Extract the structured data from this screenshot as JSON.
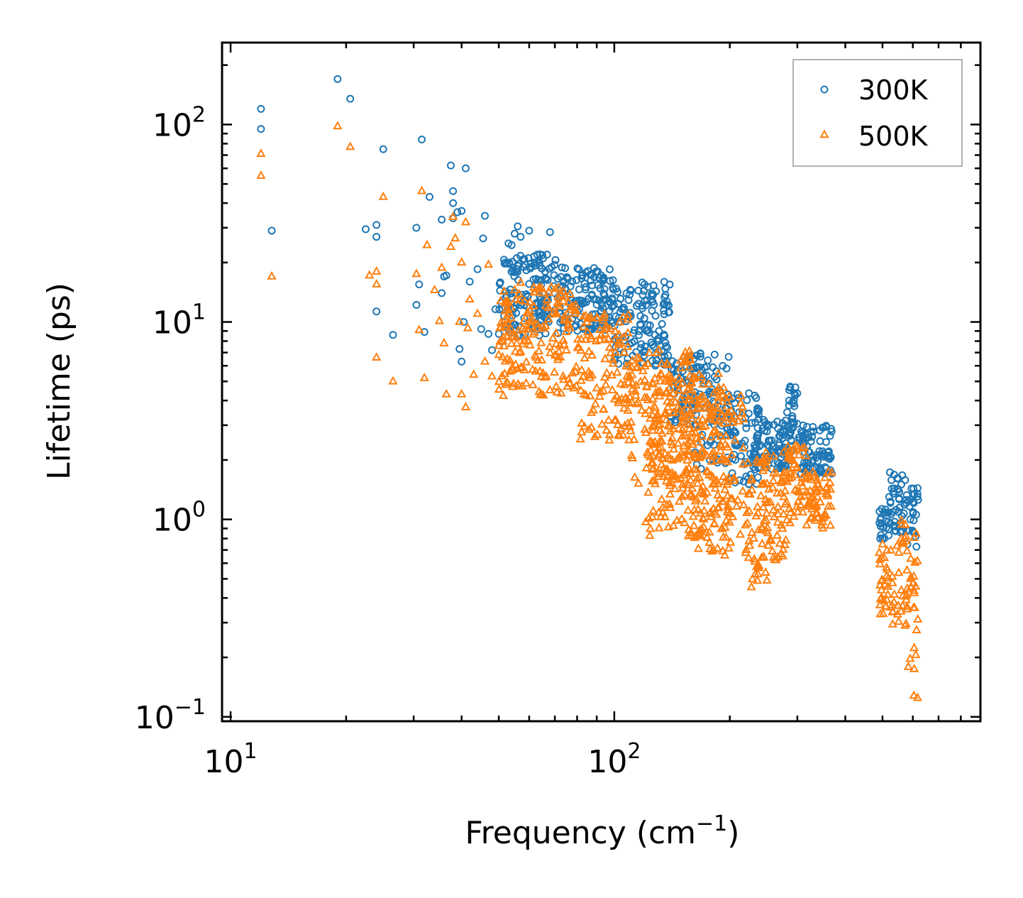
{
  "chart_data": {
    "type": "scatter",
    "title": "",
    "xlabel": "Frequency (cm",
    "xlabel_sup": "−1",
    "xlabel_end": ")",
    "ylabel": "Lifetime (ps)",
    "xscale": "log",
    "yscale": "log",
    "xlim": [
      9.5,
      900
    ],
    "ylim": [
      0.095,
      260
    ],
    "x_ticks": [
      {
        "value": 10,
        "base": "10",
        "exp": "1"
      },
      {
        "value": 100,
        "base": "10",
        "exp": "2"
      }
    ],
    "y_ticks": [
      {
        "value": 0.1,
        "base": "10",
        "exp": "−1"
      },
      {
        "value": 1,
        "base": "10",
        "exp": "0"
      },
      {
        "value": 10,
        "base": "10",
        "exp": "1"
      },
      {
        "value": 100,
        "base": "10",
        "exp": "2"
      }
    ],
    "legend_position": "top-right",
    "series": [
      {
        "name": "300K",
        "marker": "circle",
        "color": "#1f77b4",
        "points": [
          [
            12.0,
            120
          ],
          [
            12.0,
            95
          ],
          [
            12.8,
            29
          ],
          [
            19.0,
            170
          ],
          [
            20.5,
            135
          ],
          [
            24.0,
            31
          ],
          [
            24.0,
            27
          ],
          [
            24.0,
            11.3
          ],
          [
            25.0,
            75
          ],
          [
            26.5,
            8.6
          ],
          [
            22.5,
            29.5
          ],
          [
            30.5,
            12.2
          ],
          [
            30.5,
            30
          ],
          [
            31.0,
            15.5
          ],
          [
            31.5,
            84
          ],
          [
            32.0,
            8.9
          ],
          [
            33.0,
            43
          ],
          [
            35.5,
            14
          ],
          [
            35.5,
            33
          ],
          [
            36.0,
            17
          ],
          [
            36.5,
            17.2
          ],
          [
            37.5,
            62
          ],
          [
            38.0,
            46
          ],
          [
            38.0,
            40
          ],
          [
            38.0,
            33.5
          ],
          [
            39.0,
            36
          ],
          [
            39.5,
            7.3
          ],
          [
            40.0,
            36.5
          ],
          [
            40.0,
            6.3
          ],
          [
            40.5,
            10
          ],
          [
            41.0,
            60
          ],
          [
            42.0,
            16
          ],
          [
            44.0,
            18.5
          ],
          [
            45.0,
            9.2
          ],
          [
            45.5,
            26.5
          ],
          [
            46.0,
            34.5
          ],
          [
            47.0,
            8.7
          ],
          [
            48.0,
            7.2
          ],
          [
            49.0,
            11.6
          ],
          [
            50.0,
            8.7
          ],
          [
            51.0,
            8.0
          ],
          [
            52.0,
            20
          ],
          [
            53.0,
            25
          ],
          [
            54.0,
            24.5
          ],
          [
            55.0,
            28
          ],
          [
            56.0,
            30.5
          ],
          [
            57.0,
            27
          ],
          [
            58.0,
            19
          ],
          [
            60.0,
            29
          ],
          [
            62.0,
            20
          ],
          [
            64.0,
            22
          ],
          [
            66.0,
            18
          ],
          [
            68.0,
            28.5
          ],
          [
            70.0,
            14
          ]
        ],
        "bands": [
          [
            50,
            72,
            8.5,
            22
          ],
          [
            72,
            100,
            9,
            19
          ],
          [
            100,
            140,
            6,
            16
          ],
          [
            140,
            165,
            3.0,
            7.0
          ],
          [
            160,
            200,
            1.8,
            7.2
          ],
          [
            200,
            240,
            1.5,
            4.5
          ],
          [
            230,
            290,
            1.8,
            3.2
          ],
          [
            280,
            300,
            2.4,
            5.0
          ],
          [
            300,
            370,
            1.7,
            3.0
          ],
          [
            490,
            520,
            0.8,
            1.15
          ],
          [
            520,
            580,
            0.85,
            1.75
          ],
          [
            580,
            620,
            0.7,
            1.5
          ]
        ]
      },
      {
        "name": "500K",
        "marker": "triangle",
        "color": "#ff7f0e",
        "points": [
          [
            12.0,
            71
          ],
          [
            12.0,
            55
          ],
          [
            12.8,
            17
          ],
          [
            19.0,
            98
          ],
          [
            20.5,
            77
          ],
          [
            23.0,
            17.2
          ],
          [
            24.0,
            18
          ],
          [
            24.0,
            15.5
          ],
          [
            24.0,
            6.6
          ],
          [
            25.0,
            43
          ],
          [
            26.5,
            5.0
          ],
          [
            30.5,
            17.5
          ],
          [
            31.0,
            9.1
          ],
          [
            31.5,
            46
          ],
          [
            32.0,
            5.2
          ],
          [
            32.5,
            24.5
          ],
          [
            34.0,
            14.5
          ],
          [
            35.0,
            10.1
          ],
          [
            35.5,
            18.8
          ],
          [
            36.0,
            7.8
          ],
          [
            36.5,
            4.3
          ],
          [
            37.5,
            24
          ],
          [
            38.0,
            34
          ],
          [
            38.5,
            26.5
          ],
          [
            39.5,
            10
          ],
          [
            40.0,
            20
          ],
          [
            40.0,
            4.3
          ],
          [
            41.0,
            3.7
          ],
          [
            41.0,
            32
          ],
          [
            41.5,
            9.3
          ],
          [
            42.0,
            13
          ],
          [
            43.0,
            5.4
          ],
          [
            44.0,
            11
          ],
          [
            46.0,
            6.3
          ],
          [
            47.0,
            19.5
          ],
          [
            48.0,
            5.3
          ],
          [
            50.0,
            6.8
          ],
          [
            52.0,
            4.8
          ],
          [
            55.0,
            14.5
          ],
          [
            57.0,
            15.8
          ]
        ],
        "bands": [
          [
            50,
            80,
            4.2,
            15
          ],
          [
            80,
            110,
            2.5,
            11
          ],
          [
            110,
            160,
            1.3,
            7.5
          ],
          [
            120,
            200,
            0.8,
            5.5
          ],
          [
            160,
            220,
            0.65,
            4.5
          ],
          [
            220,
            250,
            0.45,
            2.0
          ],
          [
            240,
            280,
            0.6,
            2.2
          ],
          [
            280,
            320,
            0.9,
            2.4
          ],
          [
            320,
            370,
            0.9,
            1.8
          ],
          [
            490,
            530,
            0.33,
            0.75
          ],
          [
            530,
            580,
            0.28,
            1.0
          ],
          [
            580,
            620,
            0.11,
            0.95
          ]
        ]
      }
    ]
  }
}
